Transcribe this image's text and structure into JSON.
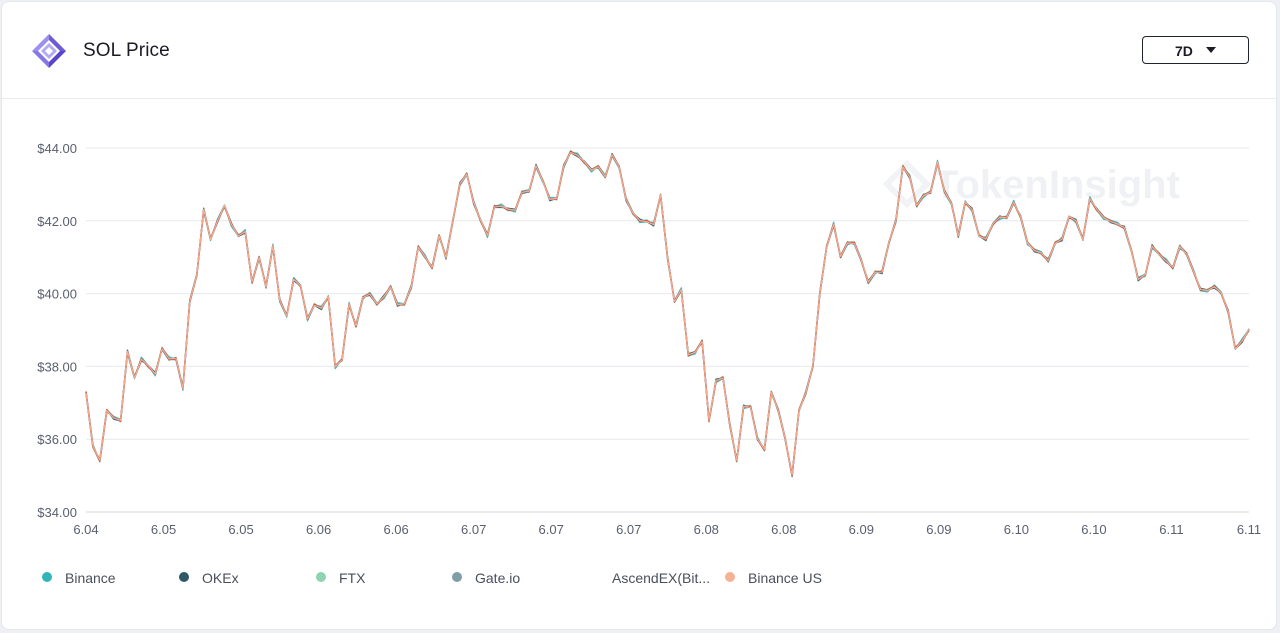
{
  "header": {
    "title": "SOL Price",
    "range_button": {
      "label": "7D"
    }
  },
  "icons": {
    "logo": "tokeninsight-logo-icon",
    "range_caret": "caret-down-icon"
  },
  "watermark": "TokenInsight",
  "colors": {
    "Binance": "#2fb5b8",
    "OKEx": "#2d5866",
    "FTX": "#8fd3b0",
    "Gate.io": "#7f9ea6",
    "AscendEX(Bit...": "#c0322a",
    "Binance US": "#f5b295"
  },
  "chart_data": {
    "type": "line",
    "title": "",
    "xlabel": "",
    "ylabel": "",
    "ylim": [
      34,
      44
    ],
    "y_ticks": [
      34,
      36,
      38,
      40,
      42,
      44
    ],
    "y_tick_labels": [
      "$34.00",
      "$36.00",
      "$38.00",
      "$40.00",
      "$42.00",
      "$44.00"
    ],
    "x_tick_labels": [
      "6.04",
      "6.05",
      "6.05",
      "6.06",
      "6.06",
      "6.07",
      "6.07",
      "6.07",
      "6.08",
      "6.08",
      "6.09",
      "6.09",
      "6.10",
      "6.10",
      "6.11",
      "6.11"
    ],
    "grid": true,
    "legend_position": "bottom",
    "series_names": [
      "Binance",
      "OKEx",
      "FTX",
      "Gate.io",
      "AscendEX(Bit...",
      "Binance US"
    ],
    "series_values": [
      37.3,
      35.8,
      35.4,
      36.8,
      36.6,
      36.5,
      38.4,
      37.7,
      38.2,
      38.0,
      37.8,
      38.5,
      38.2,
      38.2,
      37.4,
      39.8,
      40.5,
      42.3,
      41.5,
      42.0,
      42.4,
      41.9,
      41.6,
      41.7,
      40.3,
      41.0,
      40.2,
      41.3,
      39.8,
      39.4,
      40.4,
      40.2,
      39.3,
      39.7,
      39.6,
      39.9,
      38.0,
      38.2,
      39.7,
      39.1,
      39.9,
      40.0,
      39.7,
      39.9,
      40.2,
      39.7,
      39.7,
      40.2,
      41.3,
      41.0,
      40.7,
      41.6,
      41.0,
      42.0,
      43.0,
      43.3,
      42.5,
      42.0,
      41.6,
      42.4,
      42.4,
      42.3,
      42.3,
      42.8,
      42.8,
      43.5,
      43.1,
      42.6,
      42.6,
      43.5,
      43.9,
      43.8,
      43.6,
      43.4,
      43.5,
      43.2,
      43.8,
      43.5,
      42.6,
      42.2,
      42.0,
      42.0,
      41.9,
      42.7,
      41.0,
      39.8,
      40.1,
      38.3,
      38.4,
      38.7,
      36.5,
      37.6,
      37.7,
      36.4,
      35.4,
      36.9,
      36.9,
      36.0,
      35.7,
      37.3,
      36.8,
      36.0,
      35.0,
      36.8,
      37.3,
      38.0,
      40.0,
      41.3,
      41.9,
      41.0,
      41.4,
      41.4,
      40.9,
      40.3,
      40.6,
      40.6,
      41.4,
      42.0,
      43.5,
      43.2,
      42.4,
      42.7,
      42.8,
      43.6,
      42.8,
      42.5,
      41.6,
      42.5,
      42.3,
      41.6,
      41.5,
      41.9,
      42.1,
      42.1,
      42.5,
      42.1,
      41.4,
      41.2,
      41.1,
      40.9,
      41.4,
      41.5,
      42.1,
      42.0,
      41.5,
      42.6,
      42.3,
      42.1,
      42.0,
      41.9,
      41.8,
      41.2,
      40.4,
      40.5,
      41.3,
      41.1,
      40.9,
      40.7,
      41.3,
      41.1,
      40.6,
      40.1,
      40.1,
      40.2,
      40.0,
      39.5,
      38.5,
      38.7,
      39.0
    ]
  },
  "legend": {
    "items": [
      {
        "label": "Binance"
      },
      {
        "label": "OKEx"
      },
      {
        "label": "FTX"
      },
      {
        "label": "Gate.io"
      },
      {
        "label": "AscendEX(Bit..."
      },
      {
        "label": "Binance US"
      }
    ]
  }
}
